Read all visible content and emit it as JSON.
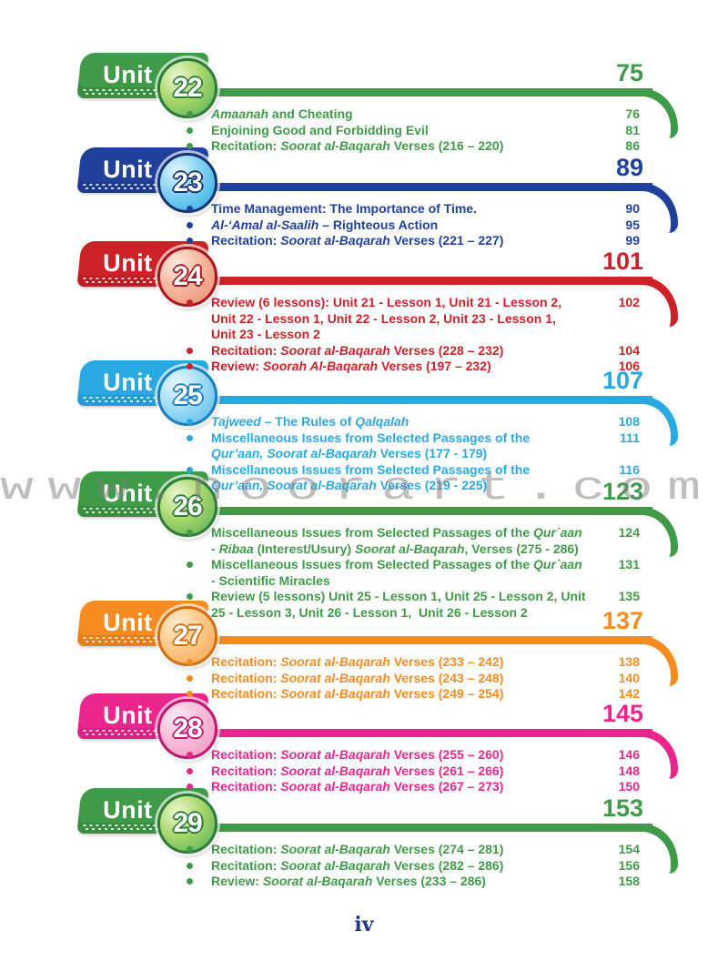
{
  "watermark": "www.noorart.com",
  "footer": {
    "page_label": "iv"
  },
  "units": [
    {
      "label": "Unit",
      "number": "22",
      "page": "75",
      "colors": {
        "main": "#3f9b48",
        "rim": "#2d7b38",
        "circle_light": "#edf7cf",
        "circle_mid": "#a9d76c",
        "circle_dark": "#50ad56"
      },
      "items": [
        {
          "text": "*Amaanah* and Cheating",
          "page": "76"
        },
        {
          "text": "Enjoining Good and Forbidding Evil",
          "page": "81"
        },
        {
          "text": "Recitation: *Soorat al-Baqarah* Verses (216 – 220)",
          "page": "86"
        }
      ]
    },
    {
      "label": "Unit",
      "number": "23",
      "page": "89",
      "colors": {
        "main": "#21409b",
        "rim": "#173273",
        "circle_light": "#e6f6fd",
        "circle_mid": "#7fd0f1",
        "circle_dark": "#2aabe2"
      },
      "items": [
        {
          "text": "Time Management: The Importance of Time.",
          "page": "90"
        },
        {
          "text": "*Al-‘Amal al-Saalih* – Righteous Action",
          "page": "95"
        },
        {
          "text": "Recitation: *Soorat al-Baqarah* Verses (221 – 227)",
          "page": "99"
        }
      ]
    },
    {
      "label": "Unit",
      "number": "24",
      "page": "101",
      "colors": {
        "main": "#cd2128",
        "rim": "#a8161d",
        "circle_light": "#fdeadd",
        "circle_mid": "#f6b79f",
        "circle_dark": "#ee8a6f"
      },
      "items": [
        {
          "text": "Review (6 lessons): Unit 21 - Lesson 1, Unit 21 - Lesson 2,\nUnit 22 - Lesson 1, Unit 22 - Lesson 2, Unit 23 - Lesson 1,\nUnit 23 - Lesson 2",
          "page": "102"
        },
        {
          "text": "Recitation: *Soorat al-Baqarah* Verses (228 – 232)",
          "page": "104"
        },
        {
          "text": "Review: *Soorah Al-Baqarah* Verses (197 – 232)",
          "page": "106"
        }
      ]
    },
    {
      "label": "Unit",
      "number": "25",
      "page": "107",
      "colors": {
        "main": "#29a9e1",
        "rim": "#1a7fc1",
        "circle_light": "#eaf8fe",
        "circle_mid": "#a0ddf6",
        "circle_dark": "#4fb9e8"
      },
      "items": [
        {
          "text": "*Tajweed* – The Rules of *Qalqalah*",
          "page": "108"
        },
        {
          "text": "Miscellaneous Issues from Selected Passages of the\n*Qur’aan, Soorat al-Baqarah* Verses (177 - 179)",
          "page": "111"
        },
        {
          "text": "Miscellaneous Issues from Selected Passages of the\n*Qur’aan, Soorat al-Baqarah* Verses (219 - 225)",
          "page": "116"
        }
      ]
    },
    {
      "label": "Unit",
      "number": "26",
      "page": "123",
      "colors": {
        "main": "#3f9b48",
        "rim": "#2d7b38",
        "circle_light": "#edf7cf",
        "circle_mid": "#a9d76c",
        "circle_dark": "#50ad56"
      },
      "items": [
        {
          "text": "Miscellaneous Issues from Selected Passages of the *Qur´aan*\n- *Ribaa* (Interest/Usury) *Soorat al-Baqarah*, Verses (275 - 286)",
          "page": "124"
        },
        {
          "text": "Miscellaneous Issues from Selected Passages of the *Qur`aan*\n- Scientific Miracles",
          "page": "131"
        },
        {
          "text": "Review (5 lessons) Unit 25 - Lesson 1, Unit 25 - Lesson 2, Unit\n25 - Lesson 3, Unit 26 - Lesson 1,  Unit 26 - Lesson 2",
          "page": "135"
        }
      ]
    },
    {
      "label": "Unit",
      "number": "27",
      "page": "137",
      "colors": {
        "main": "#f68b1f",
        "rim": "#d26f10",
        "circle_light": "#fdeccd",
        "circle_mid": "#fbc98a",
        "circle_dark": "#f5a34a"
      },
      "items": [
        {
          "text": "Recitation: *Soorat al-Baqarah* Verses (233 – 242)",
          "page": "138"
        },
        {
          "text": "Recitation: *Soorat al-Baqarah* Verses (243 – 248)",
          "page": "140"
        },
        {
          "text": "Recitation: *Soorat al-Baqarah* Verses (249 – 254)",
          "page": "142"
        }
      ]
    },
    {
      "label": "Unit",
      "number": "28",
      "page": "145",
      "colors": {
        "main": "#ec258d",
        "rim": "#c01570",
        "circle_light": "#fde9f2",
        "circle_mid": "#f9bcd8",
        "circle_dark": "#f293c0"
      },
      "items": [
        {
          "text": "Recitation: *Soorat al-Baqarah* Verses (255 – 260)",
          "page": "146"
        },
        {
          "text": "Recitation: *Soorat al-Baqarah* Verses (261 – 266)",
          "page": "148"
        },
        {
          "text": "Recitation: *Soorat al-Baqarah* Verses (267 – 273)",
          "page": "150"
        }
      ]
    },
    {
      "label": "Unit",
      "number": "29",
      "page": "153",
      "colors": {
        "main": "#3f9b48",
        "rim": "#2d7b38",
        "circle_light": "#edf7cf",
        "circle_mid": "#a9d76c",
        "circle_dark": "#50ad56"
      },
      "items": [
        {
          "text": "Recitation: *Soorat al-Baqarah* Verses (274 – 281)",
          "page": "154"
        },
        {
          "text": "Recitation: *Soorat al-Baqarah* Verses (282 – 286)",
          "page": "156"
        },
        {
          "text": "Review: *Soorat al-Baqarah* Verses (233 – 286)",
          "page": "158"
        }
      ]
    }
  ]
}
